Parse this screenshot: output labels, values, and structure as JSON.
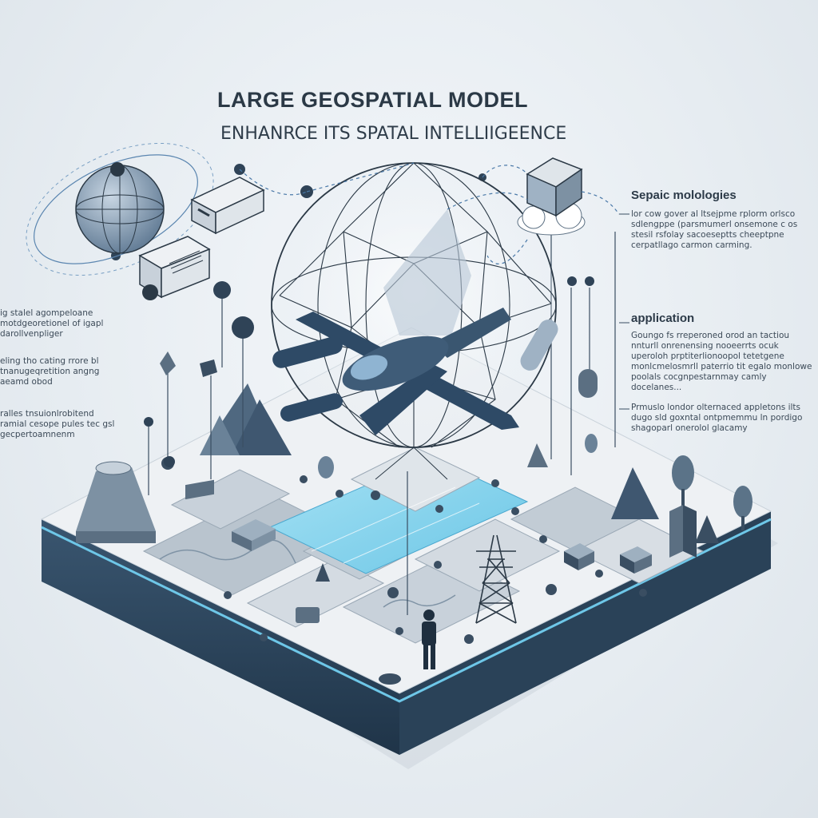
{
  "title": "LARGE GEOSPATIAL MODEL",
  "subtitle": "ENHANRCE ITS SPATAL INTELLIIGEENCE",
  "right_panel": {
    "heading_1": "Sepaic molologies",
    "text_1": "lor cow gover al ltsejpme rplorm orlsco sdlengppe (parsmumerl onsemone c os stesil rsfolay sacoeseptts cheeptpne cerpatllago carmon carming.",
    "heading_2": "application",
    "text_2": "Goungo fs rreperoned orod an tactiou nnturll onrenensing nooeerrts ocuk uperoloh prptiterlionoopol tetetgene monlcmelosmrll paterrio tit egalo monlowe poolals cocgnpestarnmay camly docelanes...",
    "text_3": "Prmuslo londor olternaced appletons ilts dugo sld goxntal ontpmemmu ln pordigo shagoparl onerolol glacamy"
  },
  "left_panel": {
    "text_1": "ig stalel agompeloane motdgeoretionel of igapl darollvenpliger",
    "text_2": "eling tho cating rrore bl tnanugeqretition angng aeamd obod",
    "text_3": "ralles tnsuionlrobitend ramial cesope pules tec gsl gecpertoamnenm"
  },
  "colors": {
    "navy": "#2e4a66",
    "slate": "#5b6f82",
    "water": "#7fd0ec",
    "board_top": "#eef1f4",
    "tile": "#b9c4ce",
    "line": "#3a4e62"
  }
}
